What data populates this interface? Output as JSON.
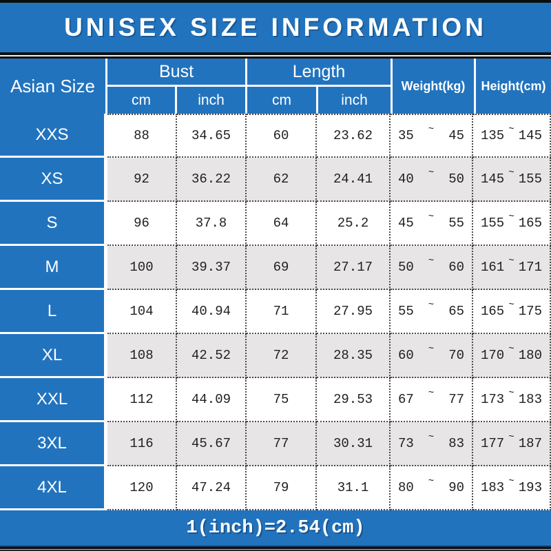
{
  "title": "UNISEX SIZE INFORMATION",
  "header": {
    "asian_size": "Asian Size",
    "bust": "Bust",
    "length": "Length",
    "weight": "Weight(kg)",
    "height": "Height(cm)",
    "bust_cm": "cm",
    "bust_inch": "inch",
    "length_cm": "cm",
    "length_inch": "inch"
  },
  "symbols": {
    "range_tilde": "~"
  },
  "rows": [
    {
      "size": "XXS",
      "bust_cm": "88",
      "bust_inch": "34.65",
      "length_cm": "60",
      "length_inch": "23.62",
      "weight_min": "35",
      "weight_max": "45",
      "height_min": "135",
      "height_max": "145"
    },
    {
      "size": "XS",
      "bust_cm": "92",
      "bust_inch": "36.22",
      "length_cm": "62",
      "length_inch": "24.41",
      "weight_min": "40",
      "weight_max": "50",
      "height_min": "145",
      "height_max": "155"
    },
    {
      "size": "S",
      "bust_cm": "96",
      "bust_inch": "37.8",
      "length_cm": "64",
      "length_inch": "25.2",
      "weight_min": "45",
      "weight_max": "55",
      "height_min": "155",
      "height_max": "165"
    },
    {
      "size": "M",
      "bust_cm": "100",
      "bust_inch": "39.37",
      "length_cm": "69",
      "length_inch": "27.17",
      "weight_min": "50",
      "weight_max": "60",
      "height_min": "161",
      "height_max": "171"
    },
    {
      "size": "L",
      "bust_cm": "104",
      "bust_inch": "40.94",
      "length_cm": "71",
      "length_inch": "27.95",
      "weight_min": "55",
      "weight_max": "65",
      "height_min": "165",
      "height_max": "175"
    },
    {
      "size": "XL",
      "bust_cm": "108",
      "bust_inch": "42.52",
      "length_cm": "72",
      "length_inch": "28.35",
      "weight_min": "60",
      "weight_max": "70",
      "height_min": "170",
      "height_max": "180"
    },
    {
      "size": "XXL",
      "bust_cm": "112",
      "bust_inch": "44.09",
      "length_cm": "75",
      "length_inch": "29.53",
      "weight_min": "67",
      "weight_max": "77",
      "height_min": "173",
      "height_max": "183"
    },
    {
      "size": "3XL",
      "bust_cm": "116",
      "bust_inch": "45.67",
      "length_cm": "77",
      "length_inch": "30.31",
      "weight_min": "73",
      "weight_max": "83",
      "height_min": "177",
      "height_max": "187"
    },
    {
      "size": "4XL",
      "bust_cm": "120",
      "bust_inch": "47.24",
      "length_cm": "79",
      "length_inch": "31.1",
      "weight_min": "80",
      "weight_max": "90",
      "height_min": "183",
      "height_max": "193"
    }
  ],
  "footer": {
    "conversion_note": "1(inch)=2.54(cm)"
  },
  "colors": {
    "blue": "#2273BE",
    "gray_row": "#E7E5E6",
    "body_text": "#1F1F1F",
    "header_text": "#FFFFFF"
  }
}
